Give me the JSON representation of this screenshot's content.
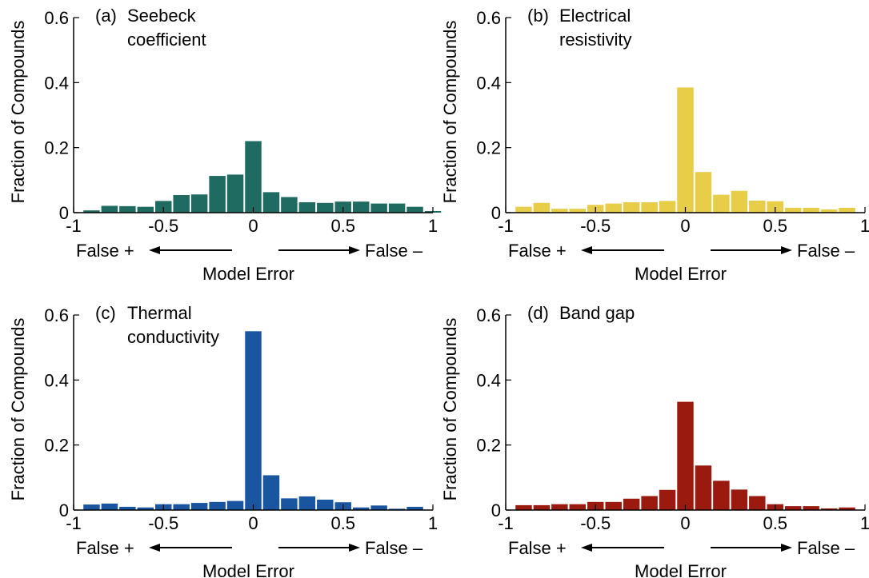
{
  "chart_data": [
    {
      "type": "bar",
      "panel_label": "(a)",
      "title_lines": [
        "Seebeck",
        "coefficient"
      ],
      "ylabel": "Fraction of Compounds",
      "xlabel": "Model Error",
      "arrow_left_label": "False +",
      "arrow_right_label": "False –",
      "xlim": [
        -1,
        1
      ],
      "ylim": [
        0,
        0.6
      ],
      "xticks": [
        -1,
        -0.5,
        0,
        0.5,
        1
      ],
      "xtick_labels": [
        "-1",
        "-0.5",
        "0",
        "0.5",
        "1"
      ],
      "yticks": [
        0,
        0.2,
        0.4,
        0.6
      ],
      "ytick_labels": [
        "0",
        "0.2",
        "0.4",
        "0.6"
      ],
      "bin_width": 0.1,
      "x": [
        -0.9,
        -0.8,
        -0.7,
        -0.6,
        -0.5,
        -0.4,
        -0.3,
        -0.2,
        -0.1,
        0.0,
        0.1,
        0.2,
        0.3,
        0.4,
        0.5,
        0.6,
        0.7,
        0.8,
        0.9,
        1.0
      ],
      "values": [
        0.007,
        0.021,
        0.02,
        0.018,
        0.036,
        0.054,
        0.056,
        0.113,
        0.117,
        0.22,
        0.063,
        0.048,
        0.032,
        0.03,
        0.034,
        0.034,
        0.028,
        0.028,
        0.018,
        0.005
      ],
      "color": "#1f6b61"
    },
    {
      "type": "bar",
      "panel_label": "(b)",
      "title_lines": [
        "Electrical",
        "resistivity"
      ],
      "ylabel": "Fraction of Compounds",
      "xlabel": "Model Error",
      "arrow_left_label": "False +",
      "arrow_right_label": "False –",
      "xlim": [
        -1,
        1
      ],
      "ylim": [
        0,
        0.6
      ],
      "xticks": [
        -1,
        -0.5,
        0,
        0.5,
        1
      ],
      "xtick_labels": [
        "-1",
        "-0.5",
        "0",
        "0.5",
        "1"
      ],
      "yticks": [
        0,
        0.2,
        0.4,
        0.6
      ],
      "ytick_labels": [
        "0",
        "0.2",
        "0.4",
        "0.6"
      ],
      "bin_width": 0.1,
      "x": [
        -0.9,
        -0.8,
        -0.7,
        -0.6,
        -0.5,
        -0.4,
        -0.3,
        -0.2,
        -0.1,
        0.0,
        0.1,
        0.2,
        0.3,
        0.4,
        0.5,
        0.6,
        0.7,
        0.8,
        0.9
      ],
      "values": [
        0.018,
        0.03,
        0.012,
        0.012,
        0.024,
        0.028,
        0.032,
        0.032,
        0.036,
        0.385,
        0.125,
        0.055,
        0.067,
        0.037,
        0.035,
        0.015,
        0.015,
        0.01,
        0.015
      ],
      "color": "#e8cd48"
    },
    {
      "type": "bar",
      "panel_label": "(c)",
      "title_lines": [
        "Thermal",
        "conductivity"
      ],
      "ylabel": "Fraction of Compounds",
      "xlabel": "Model Error",
      "arrow_left_label": "False +",
      "arrow_right_label": "False –",
      "xlim": [
        -1,
        1
      ],
      "ylim": [
        0,
        0.6
      ],
      "xticks": [
        -1,
        -0.5,
        0,
        0.5,
        1
      ],
      "xtick_labels": [
        "-1",
        "-0.5",
        "0",
        "0.5",
        "1"
      ],
      "yticks": [
        0,
        0.2,
        0.4,
        0.6
      ],
      "ytick_labels": [
        "0",
        "0.2",
        "0.4",
        "0.6"
      ],
      "bin_width": 0.1,
      "x": [
        -0.9,
        -0.8,
        -0.7,
        -0.6,
        -0.5,
        -0.4,
        -0.3,
        -0.2,
        -0.1,
        0.0,
        0.1,
        0.2,
        0.3,
        0.4,
        0.5,
        0.6,
        0.7,
        0.8,
        0.9
      ],
      "values": [
        0.017,
        0.02,
        0.01,
        0.008,
        0.018,
        0.018,
        0.022,
        0.025,
        0.028,
        0.55,
        0.107,
        0.036,
        0.042,
        0.032,
        0.024,
        0.008,
        0.014,
        0.004,
        0.01
      ],
      "color": "#1a56a0"
    },
    {
      "type": "bar",
      "panel_label": "(d)",
      "title_lines": [
        "Band gap"
      ],
      "ylabel": "Fraction of Compounds",
      "xlabel": "Model Error",
      "arrow_left_label": "False +",
      "arrow_right_label": "False –",
      "xlim": [
        -1,
        1
      ],
      "ylim": [
        0,
        0.6
      ],
      "xticks": [
        -1,
        -0.5,
        0,
        0.5,
        1
      ],
      "xtick_labels": [
        "-1",
        "-0.5",
        "0",
        "0.5",
        "1"
      ],
      "yticks": [
        0,
        0.2,
        0.4,
        0.6
      ],
      "ytick_labels": [
        "0",
        "0.2",
        "0.4",
        "0.6"
      ],
      "bin_width": 0.1,
      "x": [
        -0.9,
        -0.8,
        -0.7,
        -0.6,
        -0.5,
        -0.4,
        -0.3,
        -0.2,
        -0.1,
        0.0,
        0.1,
        0.2,
        0.3,
        0.4,
        0.5,
        0.6,
        0.7,
        0.8,
        0.9
      ],
      "values": [
        0.015,
        0.015,
        0.018,
        0.018,
        0.025,
        0.025,
        0.035,
        0.043,
        0.062,
        0.333,
        0.137,
        0.09,
        0.063,
        0.043,
        0.018,
        0.012,
        0.012,
        0.005,
        0.008
      ],
      "color": "#9b1a0f"
    }
  ]
}
